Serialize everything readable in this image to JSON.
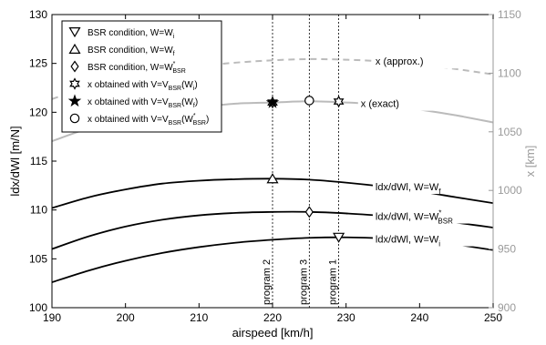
{
  "chart_data": {
    "type": "line",
    "xlabel": "airspeed [km/h]",
    "ylabel": "ldx/dWl [m/N]",
    "ylabel_right": "x [km]",
    "xlim": [
      190,
      250
    ],
    "ylim": [
      100,
      130
    ],
    "ylim_right": [
      900,
      1150
    ],
    "x_ticks": [
      "190",
      "200",
      "210",
      "220",
      "230",
      "240",
      "250"
    ],
    "y_ticks": [
      "100",
      "105",
      "110",
      "115",
      "120",
      "125",
      "130"
    ],
    "y_ticks_right": [
      "900",
      "950",
      "1000",
      "1050",
      "1100",
      "1150"
    ],
    "colors": {
      "main": "#000000",
      "range": "#bbbbbb",
      "right_axis": "#9a9a9a"
    },
    "series": [
      {
        "label": "ldx/dWl, W=Wf",
        "label_main": "ldx/dWl, W=W",
        "label_sub": "f",
        "label_sup": "",
        "axis": "left",
        "x": [
          190,
          195,
          200,
          205,
          210,
          215,
          220,
          225,
          230,
          235,
          240,
          245,
          250
        ],
        "y": [
          110.2,
          111.3,
          112.1,
          112.7,
          113.0,
          113.15,
          113.2,
          113.1,
          112.8,
          112.4,
          111.9,
          111.3,
          110.7
        ]
      },
      {
        "label": "ldx/dWl, W=W*BSR",
        "label_main": "ldx/dWl, W=W",
        "label_sub": "BSR",
        "label_sup": "*",
        "axis": "left",
        "x": [
          190,
          195,
          200,
          205,
          210,
          215,
          220,
          225,
          230,
          235,
          240,
          245,
          250
        ],
        "y": [
          106.0,
          107.3,
          108.3,
          109.0,
          109.45,
          109.7,
          109.8,
          109.8,
          109.65,
          109.4,
          109.1,
          108.7,
          108.2
        ]
      },
      {
        "label": "ldx/dWl, W=Wi",
        "label_main": "ldx/dWl, W=W",
        "label_sub": "i",
        "label_sup": "",
        "axis": "left",
        "x": [
          190,
          195,
          200,
          205,
          210,
          215,
          220,
          225,
          230,
          235,
          240,
          245,
          250
        ],
        "y": [
          102.6,
          103.8,
          104.8,
          105.6,
          106.2,
          106.65,
          106.95,
          107.15,
          107.2,
          107.1,
          106.85,
          106.45,
          105.9
        ]
      },
      {
        "label": "x (exact)",
        "label_main": "x (exact)",
        "label_sub": "",
        "label_sup": "",
        "axis": "right",
        "dashed": false,
        "x": [
          190,
          195,
          200,
          205,
          210,
          215,
          220,
          225,
          230,
          235,
          240,
          245,
          250
        ],
        "y": [
          1042,
          1053,
          1061,
          1067,
          1071,
          1074,
          1075,
          1076,
          1075,
          1073,
          1069,
          1064,
          1058
        ]
      },
      {
        "label": "x (approx.)",
        "label_main": "x (approx.)",
        "label_sub": "",
        "label_sup": "",
        "axis": "right",
        "dashed": true,
        "x": [
          190,
          195,
          200,
          205,
          210,
          215,
          220,
          225,
          230,
          235,
          240,
          245,
          250
        ],
        "y": [
          1078,
          1088,
          1096,
          1102,
          1106,
          1109,
          1111,
          1112,
          1111.5,
          1110,
          1107.5,
          1103.5,
          1099
        ]
      }
    ],
    "points": [
      {
        "marker": "triangle-down",
        "x": 229,
        "y": 107.2
      },
      {
        "marker": "triangle-up",
        "x": 220,
        "y": 113.2
      },
      {
        "marker": "diamond",
        "x": 225,
        "y": 109.8
      },
      {
        "marker": "star6",
        "x": 220,
        "y": 121.0
      },
      {
        "marker": "star5",
        "x": 220,
        "y": 121.0
      },
      {
        "marker": "star6",
        "x": 229,
        "y": 121.1
      },
      {
        "marker": "circle",
        "x": 225,
        "y": 121.2
      }
    ],
    "vlines": [
      {
        "x": 220,
        "label": "program 2"
      },
      {
        "x": 225,
        "label": "program 3"
      },
      {
        "x": 229,
        "label": "program 1"
      }
    ],
    "legend": {
      "position": "top-left",
      "entries": [
        {
          "marker": "triangle-down",
          "text": "BSR condition, W=W",
          "sub": "i",
          "sup": "",
          "suffix": ""
        },
        {
          "marker": "triangle-up",
          "text": "BSR condition, W=W",
          "sub": "f",
          "sup": "",
          "suffix": ""
        },
        {
          "marker": "diamond",
          "text": "BSR condition, W=W",
          "sub": "BSR",
          "sup": "*",
          "suffix": ""
        },
        {
          "marker": "star6",
          "text": "x obtained with V=V",
          "sub": "BSR",
          "sup": "",
          "suffix": "(W",
          "suffix_sub": "i",
          "suffix_sup": "",
          "close": ")"
        },
        {
          "marker": "star5",
          "text": "x obtained with V=V",
          "sub": "BSR",
          "sup": "",
          "suffix": "(W",
          "suffix_sub": "f",
          "suffix_sup": "",
          "close": ")"
        },
        {
          "marker": "circle",
          "text": "x obtained with V=V",
          "sub": "BSR",
          "sup": "",
          "suffix": "(W",
          "suffix_sub": "BSR",
          "suffix_sup": "*",
          "close": ")"
        }
      ]
    }
  }
}
